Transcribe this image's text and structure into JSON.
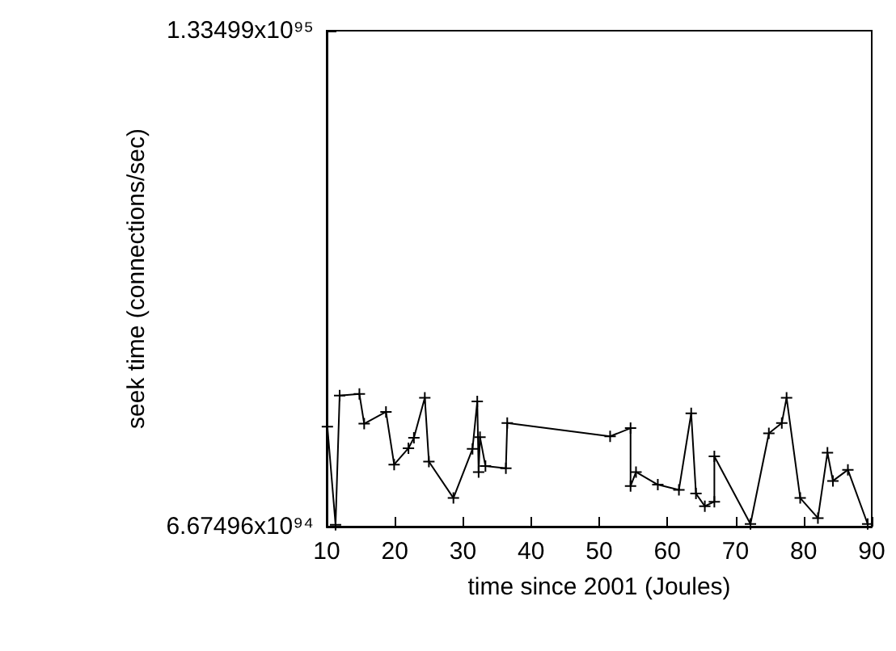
{
  "chart_data": {
    "type": "line",
    "xlabel": "time since 2001 (Joules)",
    "ylabel": "seek time (connections/sec)",
    "marker": "cross",
    "line_style": "solid",
    "grid": false,
    "xlim": [
      10,
      90
    ],
    "xticks": [
      10,
      20,
      30,
      40,
      50,
      60,
      70,
      80,
      90
    ],
    "ylim": [
      6.67496e+94,
      1.33499e+95
    ],
    "yticks": [
      {
        "value": 6.67496e+94,
        "label": "6.67496x10⁹⁴"
      },
      {
        "value": 1.33499e+95,
        "label": "1.33499x10⁹⁵"
      }
    ],
    "series": [
      {
        "color": "#000000",
        "x": [
          10.1,
          11.3,
          11.9,
          14.8,
          15.5,
          18.7,
          19.9,
          22.0,
          22.8,
          24.4,
          25.0,
          28.6,
          31.4,
          32.1,
          32.3,
          32.5,
          33.3,
          36.3,
          36.5,
          51.6,
          54.6,
          54.6,
          55.4,
          58.6,
          61.7,
          63.5,
          64.2,
          65.5,
          66.9,
          66.9,
          72.2,
          74.9,
          76.8,
          77.5,
          79.5,
          82.1,
          83.5,
          84.3,
          86.5,
          89.4
        ],
        "values": [
          8.02e+94,
          6.7e+94,
          8.44e+94,
          8.46e+94,
          8.06e+94,
          8.22e+94,
          7.51e+94,
          7.73e+94,
          7.87e+94,
          8.41e+94,
          7.55e+94,
          7.06e+94,
          7.72e+94,
          8.36e+94,
          7.41e+94,
          7.88e+94,
          7.49e+94,
          7.46e+94,
          8.07e+94,
          7.89e+94,
          8e+94,
          7.22e+94,
          7.41e+94,
          7.24e+94,
          7.17e+94,
          8.2e+94,
          7.12e+94,
          6.95e+94,
          7.01e+94,
          7.62e+94,
          6.71e+94,
          7.93e+94,
          8.07e+94,
          8.41e+94,
          7.06e+94,
          6.79e+94,
          7.67e+94,
          7.29e+94,
          7.44e+94,
          6.71e+94
        ]
      }
    ]
  }
}
